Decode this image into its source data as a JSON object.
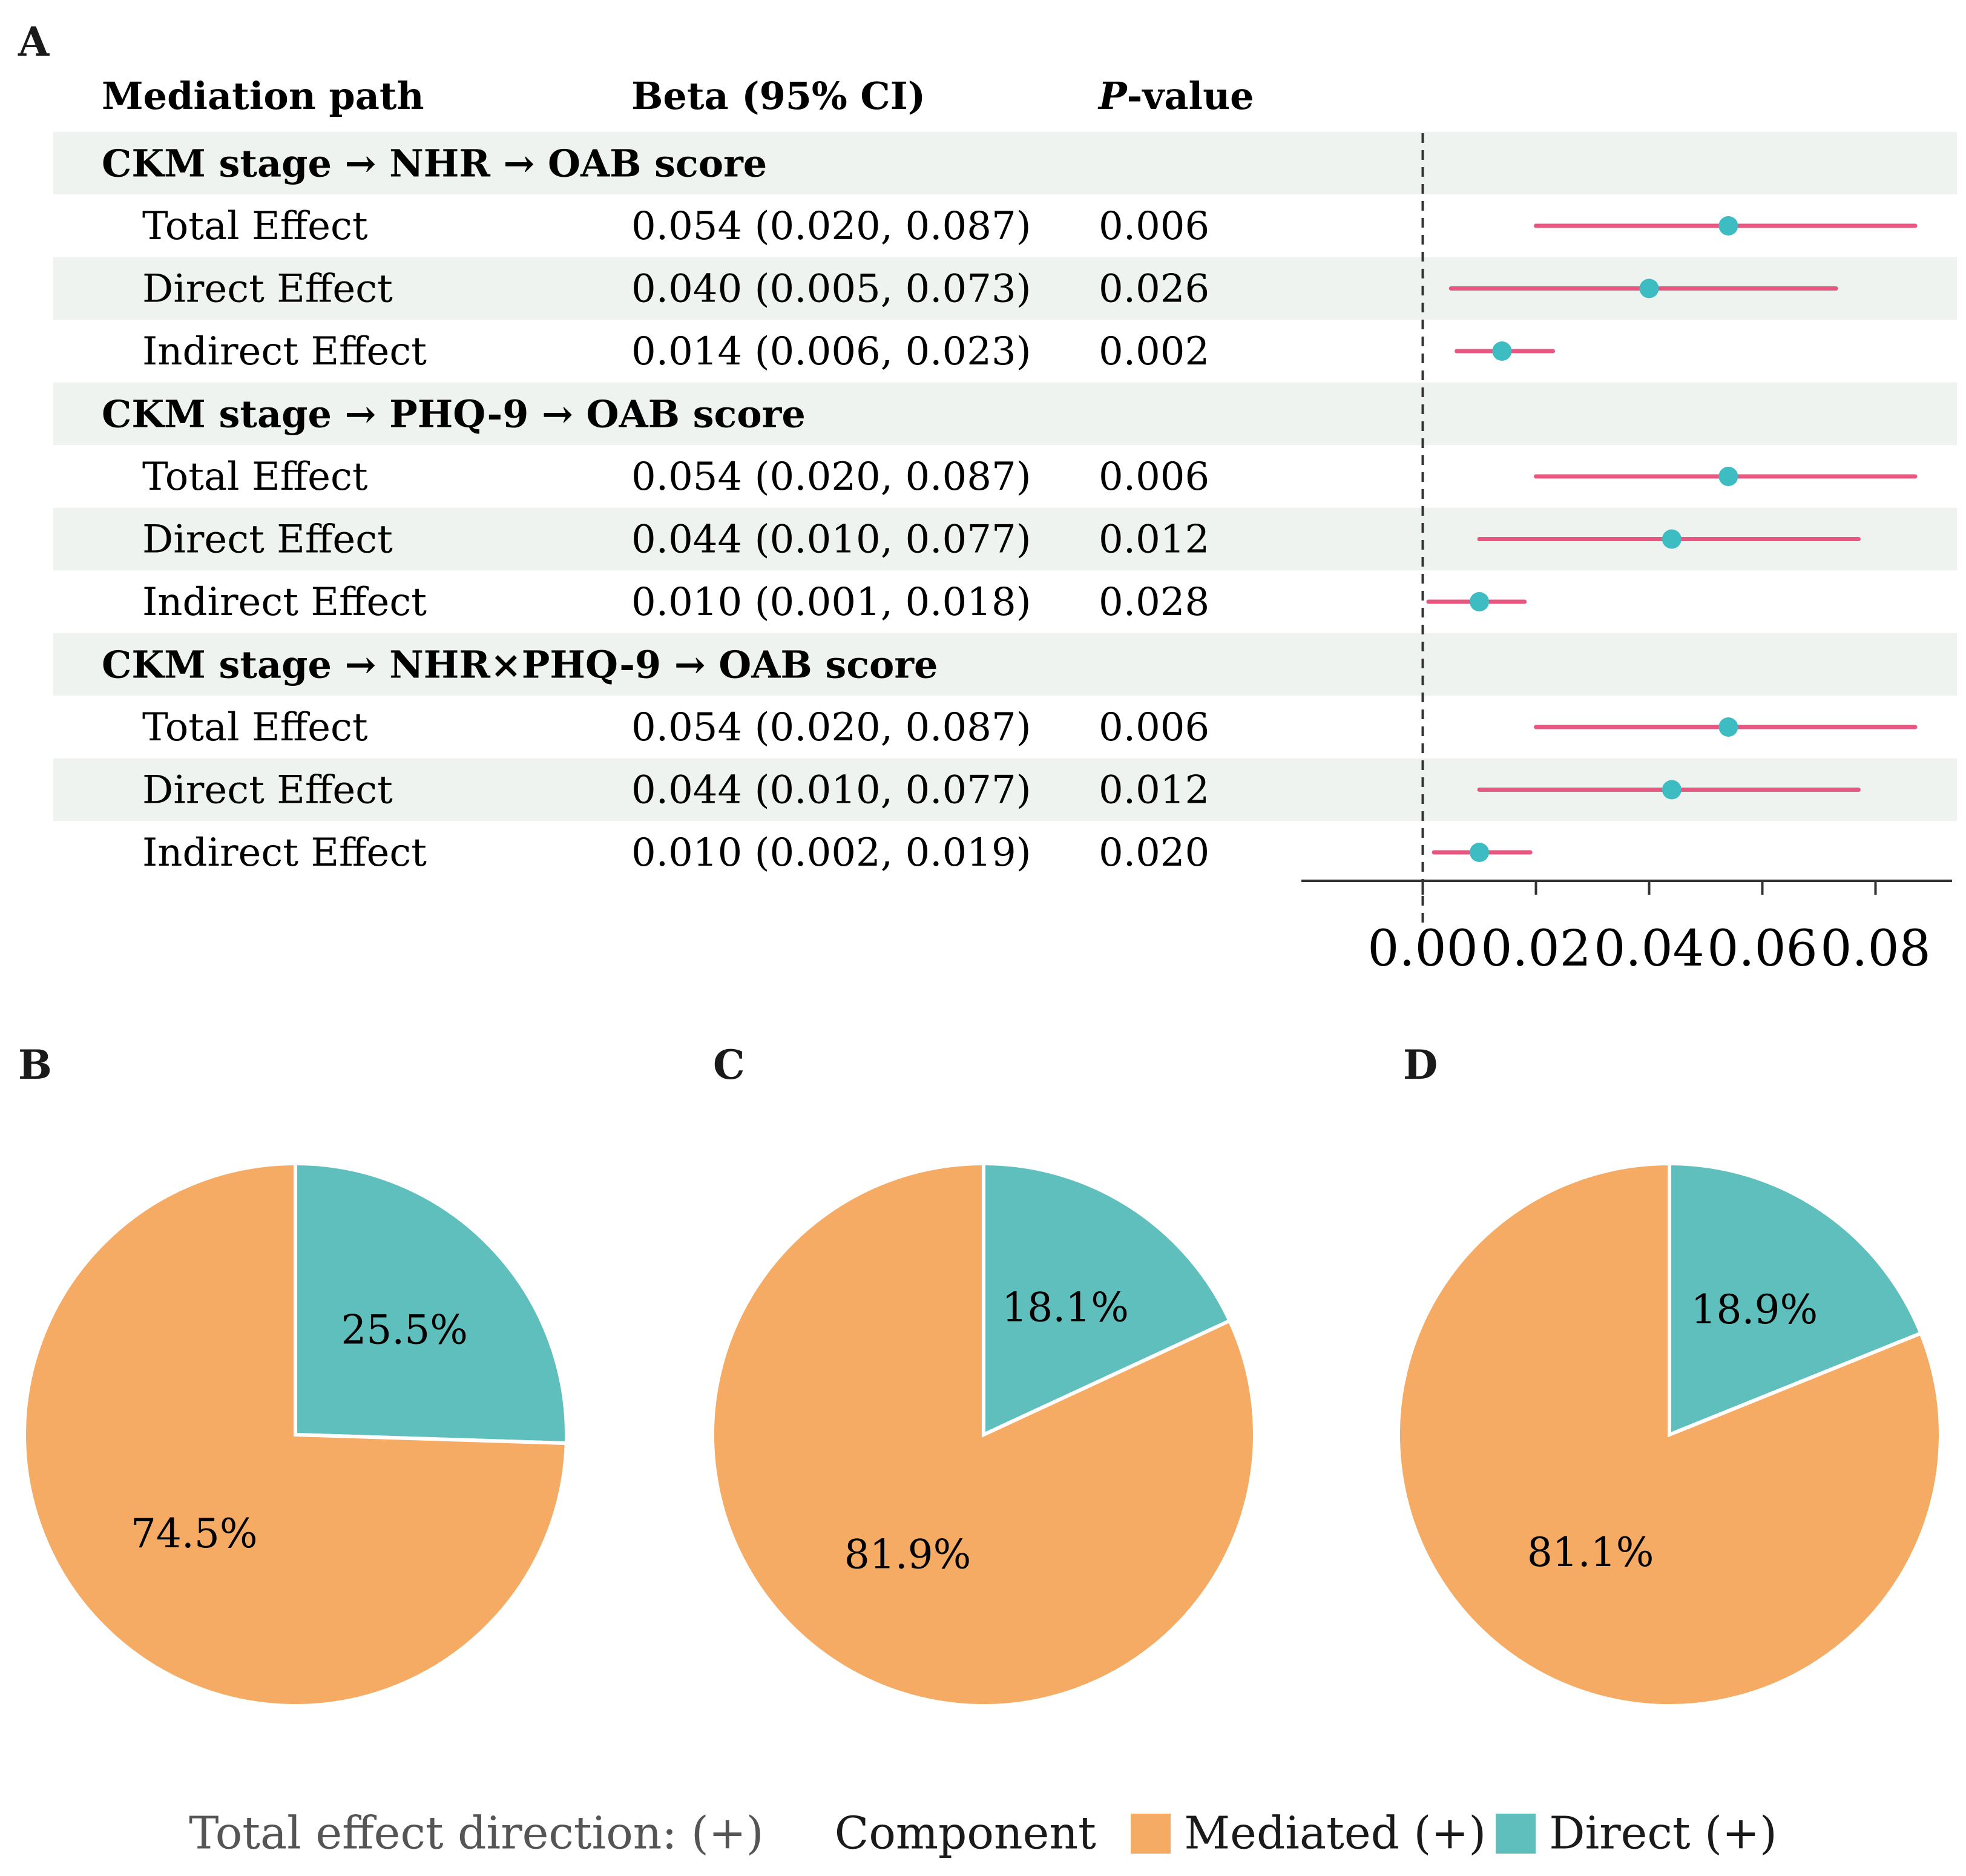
{
  "panels": {
    "a": "A",
    "b": "B",
    "c": "C",
    "d": "D"
  },
  "colors": {
    "band": "#eff3f0",
    "ci_line": "#e8577f",
    "point": "#3dbcc2",
    "mediated": "#f5ab63",
    "direct": "#5fbfbd",
    "ref_line": "#333333"
  },
  "chart_data": [
    {
      "type": "forest",
      "panel": "A",
      "columns": [
        "Mediation path",
        "Beta (95% CI)",
        "P-value"
      ],
      "column_header_p_italic": "P",
      "column_header_p_rest": "-value",
      "reference_line": 0,
      "xlim": [
        -0.01,
        0.09
      ],
      "x_ticks": [
        "0.00",
        "0.02",
        "0.04",
        "0.06",
        "0.08"
      ],
      "x_tick_values": [
        0.0,
        0.02,
        0.04,
        0.06,
        0.08
      ],
      "groups": [
        {
          "title": "CKM stage → NHR → OAB score",
          "rows": [
            {
              "label": "Total Effect",
              "beta": 0.054,
              "low": 0.02,
              "high": 0.087,
              "text": "0.054 (0.020, 0.087)",
              "p": "0.006"
            },
            {
              "label": "Direct Effect",
              "beta": 0.04,
              "low": 0.005,
              "high": 0.073,
              "text": "0.040 (0.005, 0.073)",
              "p": "0.026"
            },
            {
              "label": "Indirect Effect",
              "beta": 0.014,
              "low": 0.006,
              "high": 0.023,
              "text": "0.014 (0.006, 0.023)",
              "p": "0.002"
            }
          ]
        },
        {
          "title": "CKM stage → PHQ-9 → OAB score",
          "rows": [
            {
              "label": "Total Effect",
              "beta": 0.054,
              "low": 0.02,
              "high": 0.087,
              "text": "0.054 (0.020, 0.087)",
              "p": "0.006"
            },
            {
              "label": "Direct Effect",
              "beta": 0.044,
              "low": 0.01,
              "high": 0.077,
              "text": "0.044 (0.010, 0.077)",
              "p": "0.012"
            },
            {
              "label": "Indirect Effect",
              "beta": 0.01,
              "low": 0.001,
              "high": 0.018,
              "text": "0.010 (0.001, 0.018)",
              "p": "0.028"
            }
          ]
        },
        {
          "title": "CKM stage → NHR×PHQ-9 → OAB score",
          "rows": [
            {
              "label": "Total Effect",
              "beta": 0.054,
              "low": 0.02,
              "high": 0.087,
              "text": "0.054 (0.020, 0.087)",
              "p": "0.006"
            },
            {
              "label": "Direct Effect",
              "beta": 0.044,
              "low": 0.01,
              "high": 0.077,
              "text": "0.044 (0.010, 0.077)",
              "p": "0.012"
            },
            {
              "label": "Indirect Effect",
              "beta": 0.01,
              "low": 0.002,
              "high": 0.019,
              "text": "0.010 (0.002, 0.019)",
              "p": "0.020"
            }
          ]
        }
      ]
    },
    {
      "type": "pie",
      "panel": "B",
      "slices": [
        {
          "name": "Direct (+)",
          "value": 25.5,
          "label": "25.5%"
        },
        {
          "name": "Mediated (+)",
          "value": 74.5,
          "label": "74.5%"
        }
      ]
    },
    {
      "type": "pie",
      "panel": "C",
      "slices": [
        {
          "name": "Direct (+)",
          "value": 18.1,
          "label": "18.1%"
        },
        {
          "name": "Mediated (+)",
          "value": 81.9,
          "label": "81.9%"
        }
      ]
    },
    {
      "type": "pie",
      "panel": "D",
      "slices": [
        {
          "name": "Direct (+)",
          "value": 18.9,
          "label": "18.9%"
        },
        {
          "name": "Mediated (+)",
          "value": 81.1,
          "label": "81.1%"
        }
      ]
    }
  ],
  "legend": {
    "lead": "Total effect direction: (+)",
    "title": "Component",
    "items": [
      "Mediated (+)",
      "Direct (+)"
    ]
  }
}
